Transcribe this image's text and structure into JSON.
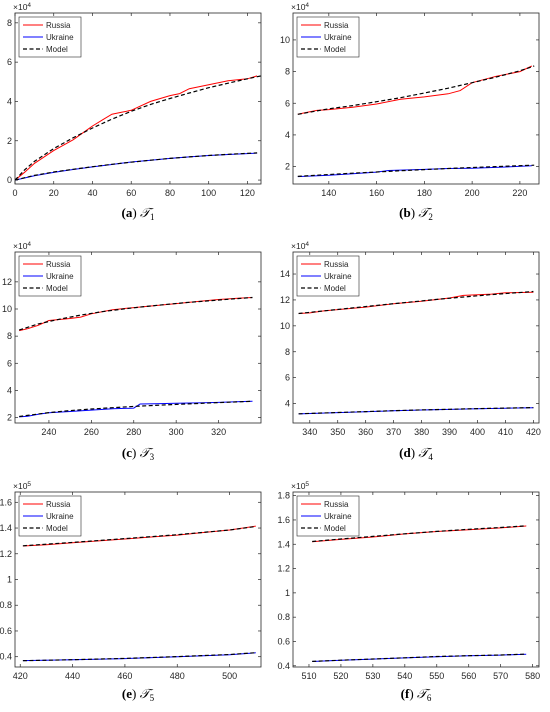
{
  "chart_data": [
    {
      "type": "line",
      "caption_letter": "(a)",
      "caption_symbol": "𝒯",
      "caption_sub": "1",
      "xlim": [
        0,
        127
      ],
      "ylim": [
        -2000,
        85000
      ],
      "xticks": [
        0,
        20,
        40,
        60,
        80,
        100,
        120
      ],
      "yticks": [
        0,
        20000,
        40000,
        60000,
        80000
      ],
      "ytick_labels": [
        "0",
        "2",
        "4",
        "6",
        "8"
      ],
      "exponent_base": "×10",
      "exponent_power": "4",
      "legend": [
        "Russia",
        "Ukraine",
        "Model"
      ],
      "series": [
        {
          "name": "Russia",
          "color": "#ff0000",
          "style": "solid",
          "x": [
            0,
            5,
            10,
            20,
            30,
            40,
            45,
            50,
            55,
            60,
            70,
            80,
            85,
            90,
            100,
            110,
            120,
            125
          ],
          "y": [
            0,
            4000,
            8500,
            15000,
            20500,
            27500,
            30500,
            33500,
            34500,
            35500,
            40000,
            43000,
            44000,
            46500,
            48500,
            50500,
            51500,
            53000
          ]
        },
        {
          "name": "Ukraine",
          "color": "#0000ff",
          "style": "solid",
          "x": [
            0,
            10,
            20,
            30,
            40,
            50,
            60,
            70,
            80,
            90,
            100,
            110,
            125
          ],
          "y": [
            0,
            2200,
            3900,
            5400,
            6700,
            7900,
            9200,
            10100,
            11000,
            11800,
            12500,
            13000,
            13700
          ]
        },
        {
          "name": "Model",
          "color": "#000000",
          "style": "dashed",
          "x": [
            0,
            5,
            10,
            20,
            30,
            40,
            50,
            60,
            70,
            80,
            90,
            100,
            110,
            120,
            127
          ],
          "y": [
            0,
            5200,
            9500,
            16000,
            21500,
            26500,
            31000,
            35000,
            38500,
            41500,
            44300,
            47000,
            49300,
            51500,
            53000
          ]
        },
        {
          "name": "Model",
          "color": "#000000",
          "style": "dashed",
          "x": [
            0,
            10,
            20,
            30,
            40,
            50,
            60,
            70,
            80,
            90,
            100,
            110,
            125
          ],
          "y": [
            0,
            2400,
            4100,
            5500,
            6800,
            8000,
            9100,
            10100,
            11000,
            11800,
            12500,
            13100,
            13800
          ]
        }
      ]
    },
    {
      "type": "line",
      "caption_letter": "(b)",
      "caption_symbol": "𝒯",
      "caption_sub": "2",
      "xlim": [
        125,
        228
      ],
      "ylim": [
        9000,
        117000
      ],
      "xticks": [
        140,
        160,
        180,
        200,
        220
      ],
      "yticks": [
        20000,
        40000,
        60000,
        80000,
        100000
      ],
      "ytick_labels": [
        "2",
        "4",
        "6",
        "8",
        "10"
      ],
      "exponent_base": "×10",
      "exponent_power": "4",
      "legend": [
        "Russia",
        "Ukraine",
        "Model"
      ],
      "series": [
        {
          "name": "Russia",
          "color": "#ff0000",
          "style": "solid",
          "x": [
            127,
            130,
            135,
            140,
            150,
            160,
            170,
            180,
            190,
            195,
            200,
            210,
            220,
            225
          ],
          "y": [
            53000,
            54000,
            55500,
            56000,
            57500,
            59500,
            62500,
            64000,
            66000,
            68000,
            73000,
            77000,
            80000,
            83500
          ]
        },
        {
          "name": "Ukraine",
          "color": "#0000ff",
          "style": "solid",
          "x": [
            127,
            140,
            150,
            160,
            165,
            170,
            180,
            190,
            200,
            210,
            225
          ],
          "y": [
            13700,
            14500,
            15500,
            16500,
            17500,
            17800,
            18200,
            18800,
            19000,
            19500,
            20500
          ]
        },
        {
          "name": "Model",
          "color": "#000000",
          "style": "dashed",
          "x": [
            127,
            140,
            150,
            160,
            170,
            180,
            190,
            200,
            210,
            220,
            226
          ],
          "y": [
            53000,
            56500,
            58500,
            61000,
            63500,
            66500,
            69500,
            73000,
            76500,
            80500,
            83500
          ]
        },
        {
          "name": "Model",
          "color": "#000000",
          "style": "dashed",
          "x": [
            127,
            140,
            150,
            160,
            170,
            180,
            190,
            200,
            210,
            226
          ],
          "y": [
            13800,
            15000,
            15800,
            16600,
            17400,
            18100,
            18800,
            19400,
            20000,
            20900
          ]
        }
      ]
    },
    {
      "type": "line",
      "caption_letter": "(c)",
      "caption_symbol": "𝒯",
      "caption_sub": "3",
      "xlim": [
        224,
        340
      ],
      "ylim": [
        16000,
        142000
      ],
      "xticks": [
        240,
        260,
        280,
        300,
        320
      ],
      "yticks": [
        20000,
        40000,
        60000,
        80000,
        100000,
        120000
      ],
      "ytick_labels": [
        "2",
        "4",
        "6",
        "8",
        "10",
        "12"
      ],
      "exponent_base": "×10",
      "exponent_power": "4",
      "legend": [
        "Russia",
        "Ukraine",
        "Model"
      ],
      "series": [
        {
          "name": "Russia",
          "color": "#ff0000",
          "style": "solid",
          "x": [
            226,
            230,
            235,
            240,
            250,
            255,
            260,
            270,
            280,
            290,
            300,
            310,
            320,
            330,
            336
          ],
          "y": [
            84000,
            85500,
            88000,
            91500,
            93000,
            94000,
            96500,
            99500,
            101000,
            102500,
            104000,
            105500,
            107000,
            108000,
            108500
          ]
        },
        {
          "name": "Ukraine",
          "color": "#0000ff",
          "style": "solid",
          "x": [
            226,
            230,
            235,
            240,
            250,
            260,
            270,
            280,
            283,
            290,
            300,
            310,
            320,
            330,
            336
          ],
          "y": [
            20500,
            21000,
            22500,
            23500,
            24500,
            25500,
            26500,
            27000,
            30000,
            30200,
            30500,
            30800,
            31200,
            31800,
            32000
          ]
        },
        {
          "name": "Model",
          "color": "#000000",
          "style": "dashed",
          "x": [
            226,
            235,
            245,
            255,
            265,
            275,
            285,
            295,
            305,
            315,
            325,
            336
          ],
          "y": [
            84500,
            89000,
            92500,
            95500,
            98000,
            100000,
            101800,
            103300,
            104800,
            106000,
            107200,
            108500
          ]
        },
        {
          "name": "Model",
          "color": "#000000",
          "style": "dashed",
          "x": [
            226,
            240,
            250,
            260,
            270,
            280,
            290,
            300,
            310,
            320,
            336
          ],
          "y": [
            20800,
            23700,
            25100,
            26300,
            27300,
            28200,
            29000,
            29700,
            30400,
            31000,
            32000
          ]
        }
      ]
    },
    {
      "type": "line",
      "caption_letter": "(d)",
      "caption_symbol": "𝒯",
      "caption_sub": "4",
      "xlim": [
        334,
        422
      ],
      "ylim": [
        25000,
        157000
      ],
      "xticks": [
        340,
        350,
        360,
        370,
        380,
        390,
        400,
        410,
        420
      ],
      "yticks": [
        40000,
        60000,
        80000,
        100000,
        120000,
        140000
      ],
      "ytick_labels": [
        "4",
        "6",
        "8",
        "10",
        "12",
        "14"
      ],
      "exponent_base": "×10",
      "exponent_power": "4",
      "legend": [
        "Russia",
        "Ukraine",
        "Model"
      ],
      "series": [
        {
          "name": "Russia",
          "color": "#ff0000",
          "style": "solid",
          "x": [
            336,
            340,
            345,
            350,
            360,
            370,
            380,
            390,
            395,
            400,
            405,
            410,
            420
          ],
          "y": [
            109500,
            110000,
            111500,
            112500,
            114500,
            117000,
            119000,
            121500,
            123500,
            124000,
            124500,
            125500,
            126000
          ]
        },
        {
          "name": "Ukraine",
          "color": "#0000ff",
          "style": "solid",
          "x": [
            336,
            350,
            360,
            370,
            380,
            390,
            400,
            410,
            420
          ],
          "y": [
            32000,
            33000,
            33700,
            34400,
            35000,
            35500,
            36000,
            36400,
            36800
          ]
        },
        {
          "name": "Model",
          "color": "#000000",
          "style": "dashed",
          "x": [
            336,
            345,
            355,
            365,
            375,
            385,
            395,
            405,
            420
          ],
          "y": [
            109500,
            111500,
            113800,
            116000,
            118200,
            120300,
            122300,
            124100,
            126500
          ]
        },
        {
          "name": "Model",
          "color": "#000000",
          "style": "dashed",
          "x": [
            336,
            350,
            360,
            370,
            380,
            390,
            400,
            410,
            420
          ],
          "y": [
            32100,
            33100,
            33800,
            34500,
            35100,
            35600,
            36100,
            36500,
            36900
          ]
        }
      ]
    },
    {
      "type": "line",
      "caption_letter": "(e)",
      "caption_symbol": "𝒯",
      "caption_sub": "5",
      "xlim": [
        418,
        512
      ],
      "ylim": [
        32000,
        168000
      ],
      "xticks": [
        420,
        440,
        460,
        480,
        500
      ],
      "yticks": [
        40000,
        60000,
        80000,
        100000,
        120000,
        140000,
        160000
      ],
      "ytick_labels": [
        "0.4",
        "0.6",
        "0.8",
        "1",
        "1.2",
        "1.4",
        "1.6"
      ],
      "exponent_base": "×10",
      "exponent_power": "5",
      "legend": [
        "Russia",
        "Ukraine",
        "Model"
      ],
      "series": [
        {
          "name": "Russia",
          "color": "#ff0000",
          "style": "solid",
          "x": [
            421,
            430,
            440,
            450,
            460,
            470,
            480,
            490,
            500,
            510
          ],
          "y": [
            126000,
            127000,
            128500,
            130000,
            131500,
            133000,
            134500,
            136500,
            138500,
            141500
          ]
        },
        {
          "name": "Ukraine",
          "color": "#0000ff",
          "style": "solid",
          "x": [
            421,
            440,
            460,
            480,
            500,
            510
          ],
          "y": [
            37000,
            37600,
            38500,
            40000,
            41500,
            43000
          ]
        },
        {
          "name": "Model",
          "color": "#000000",
          "style": "dashed",
          "x": [
            421,
            440,
            460,
            480,
            500,
            510
          ],
          "y": [
            126200,
            128800,
            131800,
            134800,
            138500,
            141200
          ]
        },
        {
          "name": "Model",
          "color": "#000000",
          "style": "dashed",
          "x": [
            421,
            440,
            460,
            480,
            500,
            510
          ],
          "y": [
            36900,
            37700,
            38700,
            40100,
            41700,
            43100
          ]
        }
      ]
    },
    {
      "type": "line",
      "caption_letter": "(f)",
      "caption_symbol": "𝒯",
      "caption_sub": "6",
      "xlim": [
        505,
        582
      ],
      "ylim": [
        39000,
        183000
      ],
      "xticks": [
        510,
        520,
        530,
        540,
        550,
        560,
        570,
        580
      ],
      "yticks": [
        40000,
        60000,
        80000,
        100000,
        120000,
        140000,
        160000,
        180000
      ],
      "ytick_labels": [
        "0.4",
        "0.6",
        "0.8",
        "1",
        "1.2",
        "1.4",
        "1.6",
        "1.8"
      ],
      "exponent_base": "×10",
      "exponent_power": "5",
      "legend": [
        "Russia",
        "Ukraine",
        "Model"
      ],
      "series": [
        {
          "name": "Russia",
          "color": "#ff0000",
          "style": "solid",
          "x": [
            511,
            520,
            530,
            540,
            550,
            560,
            570,
            578
          ],
          "y": [
            142000,
            144000,
            146000,
            148500,
            150500,
            152000,
            153500,
            155000
          ]
        },
        {
          "name": "Ukraine",
          "color": "#0000ff",
          "style": "solid",
          "x": [
            511,
            520,
            530,
            540,
            550,
            560,
            570,
            578
          ],
          "y": [
            43500,
            44500,
            45500,
            46500,
            47500,
            48200,
            48800,
            49500
          ]
        },
        {
          "name": "Model",
          "color": "#000000",
          "style": "dashed",
          "x": [
            511,
            520,
            530,
            540,
            550,
            560,
            570,
            578
          ],
          "y": [
            142300,
            144300,
            146500,
            148600,
            150600,
            152300,
            153800,
            155200
          ]
        },
        {
          "name": "Model",
          "color": "#000000",
          "style": "dashed",
          "x": [
            511,
            520,
            530,
            540,
            550,
            560,
            570,
            578
          ],
          "y": [
            43600,
            44600,
            45600,
            46600,
            47600,
            48300,
            48900,
            49600
          ]
        }
      ]
    }
  ]
}
